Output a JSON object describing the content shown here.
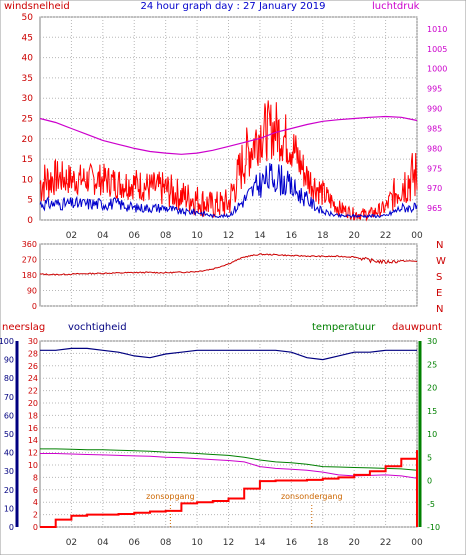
{
  "title": "24 hour graph day : 27 January 2019",
  "colors": {
    "frame": "#808080",
    "grid": "#b8b8b8",
    "wind": "#ff0000",
    "gust_avg": "#0000cc",
    "pressure": "#cc00cc",
    "direction": "#cc0000",
    "humidity": "#000080",
    "temperature": "#008000",
    "dewpoint": "#cc00cc",
    "rain": "#ff0000",
    "sun_marker": "#cc6600"
  },
  "x_ticks": [
    "02",
    "04",
    "06",
    "08",
    "10",
    "12",
    "14",
    "16",
    "18",
    "20",
    "22",
    "00"
  ],
  "chart_data": [
    {
      "type": "line",
      "name": "wind-pressure",
      "left_label": "windsnelheid",
      "right_label": "luchtdruk",
      "left_ticks": [
        0,
        5,
        10,
        15,
        20,
        25,
        30,
        35,
        40,
        45,
        50
      ],
      "right_ticks": [
        965,
        970,
        975,
        980,
        985,
        990,
        995,
        1000,
        1005,
        1010
      ],
      "ylim_left": [
        0,
        50
      ],
      "ylim_right": [
        962,
        1013
      ],
      "x": [
        0,
        1,
        2,
        3,
        4,
        5,
        6,
        7,
        8,
        9,
        10,
        11,
        12,
        13,
        14,
        15,
        16,
        17,
        18,
        19,
        20,
        21,
        22,
        23,
        24
      ],
      "series": [
        {
          "key": "pressure",
          "axis": "right",
          "values": [
            987.5,
            986.5,
            985,
            983.5,
            982,
            981,
            980,
            979.2,
            978.8,
            978.5,
            978.8,
            979.5,
            980.5,
            981.5,
            982.5,
            984,
            985,
            986,
            986.8,
            987.2,
            987.5,
            987.8,
            988,
            987.8,
            987
          ]
        },
        {
          "key": "wind_envelope_high",
          "axis": "left",
          "values": [
            15,
            15,
            14,
            14,
            14,
            13,
            13,
            12,
            12,
            10,
            9,
            7,
            8,
            22,
            29,
            30,
            25,
            15,
            10,
            5,
            3,
            3,
            5,
            15,
            18
          ]
        },
        {
          "key": "wind_envelope_low",
          "axis": "left",
          "values": [
            3,
            6,
            6,
            6,
            6,
            5,
            5,
            4,
            3,
            2,
            1,
            0,
            0,
            8,
            14,
            15,
            12,
            6,
            3,
            1,
            0,
            0,
            1,
            3,
            4
          ]
        },
        {
          "key": "wind_avg",
          "axis": "left",
          "values": [
            4,
            4,
            4,
            4,
            4,
            4,
            3,
            3,
            3,
            2,
            2,
            1,
            1,
            5,
            9,
            11,
            8,
            5,
            2,
            1,
            1,
            1,
            1,
            3,
            3
          ]
        }
      ]
    },
    {
      "type": "line",
      "name": "wind-direction",
      "left_ticks": [
        0,
        90,
        180,
        270,
        360
      ],
      "right_ticks": [
        "N",
        "W",
        "S",
        "E",
        "N"
      ],
      "ylim": [
        0,
        360
      ],
      "x": [
        0,
        1,
        2,
        3,
        4,
        5,
        6,
        7,
        8,
        9,
        10,
        11,
        12,
        13,
        14,
        15,
        16,
        17,
        18,
        19,
        20,
        21,
        22,
        23,
        24
      ],
      "values": [
        185,
        182,
        185,
        188,
        190,
        192,
        194,
        195,
        193,
        196,
        200,
        215,
        245,
        285,
        300,
        298,
        292,
        290,
        288,
        288,
        285,
        265,
        255,
        262,
        260
      ]
    },
    {
      "type": "line",
      "name": "humidity-temperature-rain",
      "left_label": "neerslag",
      "left2_label": "vochtigheid",
      "right_label": "temperatuur",
      "right2_label": "dauwpunt",
      "rain_ticks": [
        0,
        2,
        4,
        6,
        8,
        10,
        12,
        14,
        16,
        18,
        20,
        22,
        24,
        26,
        28,
        30
      ],
      "humidity_ticks": [
        0,
        10,
        20,
        30,
        40,
        50,
        60,
        70,
        80,
        90,
        100
      ],
      "temp_ticks": [
        -10,
        -5,
        0,
        5,
        10,
        15,
        20,
        25,
        30
      ],
      "ylim_rain": [
        0,
        30
      ],
      "ylim_humidity": [
        0,
        100
      ],
      "ylim_temp": [
        -10,
        30
      ],
      "x": [
        0,
        1,
        2,
        3,
        4,
        5,
        6,
        7,
        8,
        9,
        10,
        11,
        12,
        13,
        14,
        15,
        16,
        17,
        18,
        19,
        20,
        21,
        22,
        23,
        24
      ],
      "series": [
        {
          "key": "humidity",
          "axis": "humidity",
          "values": [
            95,
            95,
            96,
            96,
            95,
            94,
            92,
            91,
            93,
            94,
            95,
            95,
            95,
            95,
            95,
            95,
            94,
            91,
            90,
            92,
            94,
            94,
            95,
            95,
            95
          ]
        },
        {
          "key": "temperature",
          "axis": "temp",
          "values": [
            6.8,
            6.8,
            6.7,
            6.6,
            6.6,
            6.5,
            6.4,
            6.3,
            6.1,
            6.0,
            5.8,
            5.6,
            5.4,
            5.0,
            4.4,
            4.0,
            3.8,
            3.5,
            3.0,
            2.9,
            2.8,
            2.7,
            2.6,
            2.5,
            2.2
          ]
        },
        {
          "key": "dewpoint",
          "axis": "temp",
          "values": [
            5.8,
            5.8,
            5.7,
            5.6,
            5.5,
            5.4,
            5.3,
            5.2,
            5.0,
            4.9,
            4.7,
            4.5,
            4.3,
            4.0,
            3.0,
            2.6,
            2.4,
            2.2,
            1.8,
            1.2,
            1.0,
            1.1,
            1.2,
            1.0,
            0.5
          ]
        },
        {
          "key": "rain",
          "axis": "rain",
          "values": [
            0,
            1.2,
            1.8,
            2.0,
            2.0,
            2.1,
            2.3,
            2.5,
            2.6,
            3.8,
            4.0,
            4.2,
            4.6,
            6.2,
            7.4,
            7.5,
            7.5,
            7.6,
            7.8,
            8.0,
            8.4,
            9.0,
            9.8,
            11,
            12.4
          ]
        }
      ],
      "annotations": [
        {
          "text": "zonsopgang",
          "x": 8.3
        },
        {
          "text": "zonsondergang",
          "x": 17.3
        }
      ]
    }
  ]
}
